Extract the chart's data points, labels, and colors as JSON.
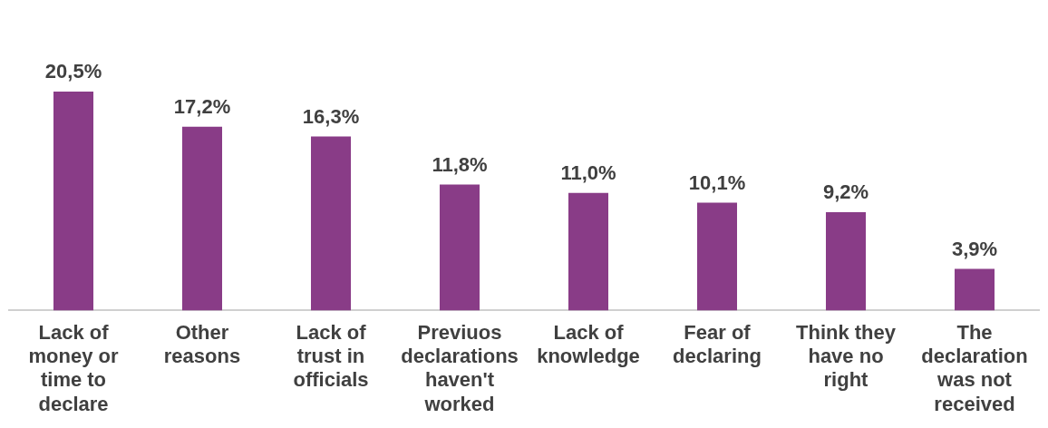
{
  "chart_data": {
    "type": "bar",
    "categories": [
      "Lack of money or time to declare",
      "Other reasons",
      "Lack of trust in officials",
      "Previuos declarations haven't worked",
      "Lack of knowledge",
      "Fear of declaring",
      "Think they have no right",
      "The declaration was not received"
    ],
    "values": [
      20.5,
      17.2,
      16.3,
      11.8,
      11.0,
      10.1,
      9.2,
      3.9
    ],
    "value_labels": [
      "20,5%",
      "17,2%",
      "16,3%",
      "11,8%",
      "11,0%",
      "10,1%",
      "9,2%",
      "3,9%"
    ],
    "color": "#893c87",
    "grid": false,
    "legend": false,
    "tick_labels": "x"
  }
}
